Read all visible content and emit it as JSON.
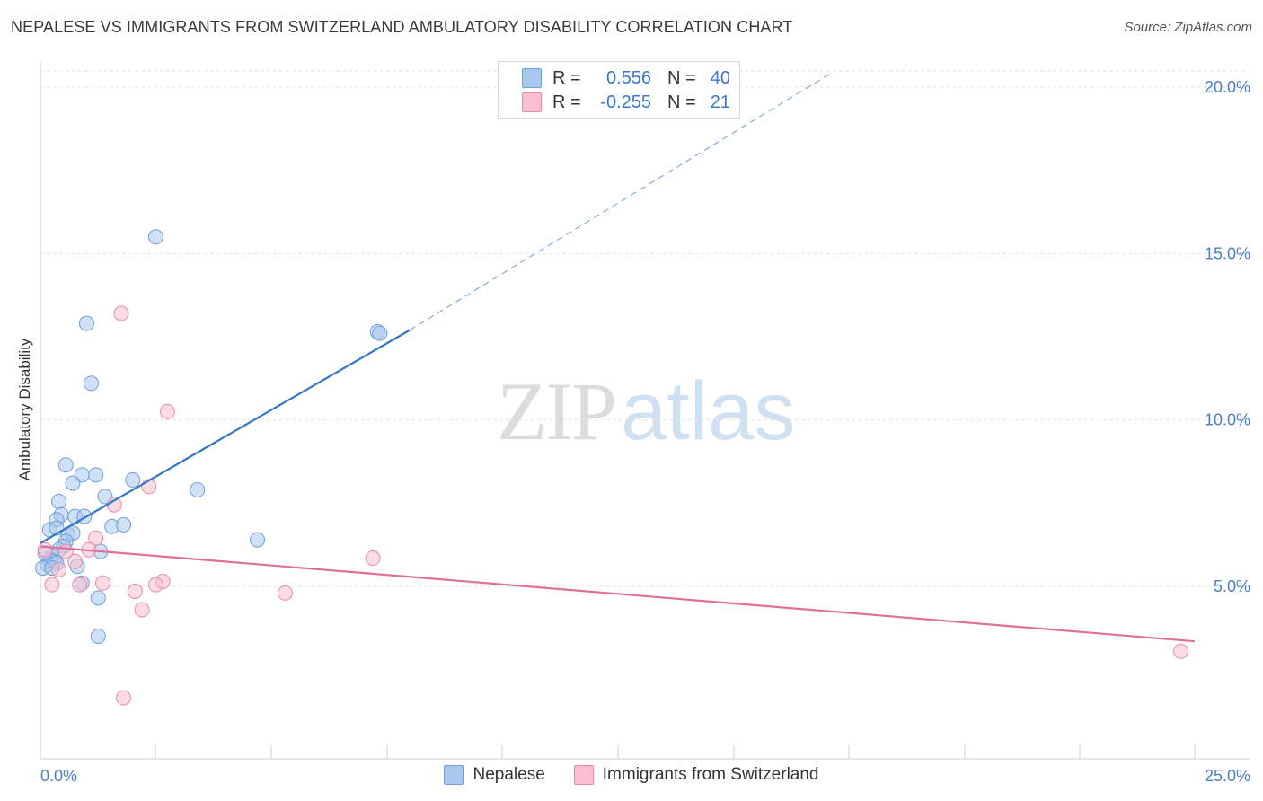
{
  "header": {
    "title": "NEPALESE VS IMMIGRANTS FROM SWITZERLAND AMBULATORY DISABILITY CORRELATION CHART",
    "source": "Source: ZipAtlas.com"
  },
  "watermark": {
    "zip": "ZIP",
    "atlas": "atlas"
  },
  "legend": {
    "rows": [
      {
        "r_label": "R =",
        "r_value": "0.556",
        "n_label": "N =",
        "n_value": "40",
        "color": "#a9c8ef",
        "border": "#6f9fd8"
      },
      {
        "r_label": "R =",
        "r_value": "-0.255",
        "n_label": "N =",
        "n_value": "21",
        "color": "#f7bfd0",
        "border": "#e88aa8"
      }
    ]
  },
  "bottom_legend": [
    {
      "label": "Nepalese",
      "color": "#a9c8ef",
      "border": "#6f9fd8"
    },
    {
      "label": "Immigrants from Switzerland",
      "color": "#f7bfd0",
      "border": "#e88aa8"
    }
  ],
  "chart_data": {
    "type": "scatter",
    "title": "NEPALESE VS IMMIGRANTS FROM SWITZERLAND AMBULATORY DISABILITY CORRELATION CHART",
    "xlabel": "",
    "ylabel": "Ambulatory Disability",
    "xlim": [
      0,
      25
    ],
    "ylim": [
      0,
      20.5
    ],
    "x_tick_labels": [
      "0.0%",
      "25.0%"
    ],
    "y_ticks": [
      5,
      10,
      15,
      20
    ],
    "y_tick_labels": [
      "5.0%",
      "10.0%",
      "15.0%",
      "20.0%"
    ],
    "grid": true,
    "series": [
      {
        "name": "Nepalese",
        "color": "#6f9fd8",
        "fill": "#a9c8ef",
        "trend": {
          "x": [
            0,
            8.0
          ],
          "y": [
            6.3,
            12.7
          ],
          "extend_to": [
            17.1,
            20.4
          ]
        },
        "points": [
          {
            "x": 2.5,
            "y": 15.5
          },
          {
            "x": 1.0,
            "y": 12.9
          },
          {
            "x": 7.3,
            "y": 12.65
          },
          {
            "x": 7.35,
            "y": 12.6
          },
          {
            "x": 1.1,
            "y": 11.1
          },
          {
            "x": 0.55,
            "y": 8.65
          },
          {
            "x": 0.9,
            "y": 8.35
          },
          {
            "x": 1.2,
            "y": 8.35
          },
          {
            "x": 0.7,
            "y": 8.1
          },
          {
            "x": 2.0,
            "y": 8.2
          },
          {
            "x": 3.4,
            "y": 7.9
          },
          {
            "x": 1.4,
            "y": 7.7
          },
          {
            "x": 0.4,
            "y": 7.55
          },
          {
            "x": 0.45,
            "y": 7.15
          },
          {
            "x": 0.75,
            "y": 7.1
          },
          {
            "x": 0.95,
            "y": 7.1
          },
          {
            "x": 0.35,
            "y": 7.0
          },
          {
            "x": 1.55,
            "y": 6.8
          },
          {
            "x": 1.8,
            "y": 6.85
          },
          {
            "x": 0.2,
            "y": 6.7
          },
          {
            "x": 0.35,
            "y": 6.75
          },
          {
            "x": 0.6,
            "y": 6.55
          },
          {
            "x": 0.7,
            "y": 6.6
          },
          {
            "x": 0.55,
            "y": 6.35
          },
          {
            "x": 0.5,
            "y": 6.2
          },
          {
            "x": 0.4,
            "y": 6.1
          },
          {
            "x": 1.3,
            "y": 6.05
          },
          {
            "x": 4.7,
            "y": 6.4
          },
          {
            "x": 0.25,
            "y": 5.9
          },
          {
            "x": 0.3,
            "y": 5.75
          },
          {
            "x": 0.15,
            "y": 5.65
          },
          {
            "x": 0.2,
            "y": 5.8
          },
          {
            "x": 0.35,
            "y": 5.7
          },
          {
            "x": 0.05,
            "y": 5.55
          },
          {
            "x": 0.8,
            "y": 5.6
          },
          {
            "x": 0.9,
            "y": 5.1
          },
          {
            "x": 1.25,
            "y": 4.65
          },
          {
            "x": 1.25,
            "y": 3.5
          },
          {
            "x": 0.1,
            "y": 6.0
          },
          {
            "x": 0.25,
            "y": 5.55
          }
        ]
      },
      {
        "name": "Immigrants from Switzerland",
        "color": "#e88aa8",
        "fill": "#f7bfd0",
        "trend": {
          "x": [
            0,
            25.0
          ],
          "y": [
            6.2,
            3.35
          ]
        },
        "points": [
          {
            "x": 1.75,
            "y": 13.2
          },
          {
            "x": 2.75,
            "y": 10.25
          },
          {
            "x": 2.35,
            "y": 8.0
          },
          {
            "x": 1.6,
            "y": 7.45
          },
          {
            "x": 1.2,
            "y": 6.45
          },
          {
            "x": 0.1,
            "y": 6.1
          },
          {
            "x": 1.05,
            "y": 6.1
          },
          {
            "x": 0.55,
            "y": 6.05
          },
          {
            "x": 0.75,
            "y": 5.75
          },
          {
            "x": 7.2,
            "y": 5.85
          },
          {
            "x": 0.4,
            "y": 5.5
          },
          {
            "x": 0.25,
            "y": 5.05
          },
          {
            "x": 0.85,
            "y": 5.05
          },
          {
            "x": 1.35,
            "y": 5.1
          },
          {
            "x": 2.65,
            "y": 5.15
          },
          {
            "x": 2.5,
            "y": 5.05
          },
          {
            "x": 2.05,
            "y": 4.85
          },
          {
            "x": 5.3,
            "y": 4.8
          },
          {
            "x": 2.2,
            "y": 4.3
          },
          {
            "x": 1.8,
            "y": 1.65
          },
          {
            "x": 24.7,
            "y": 3.05
          }
        ]
      }
    ]
  }
}
